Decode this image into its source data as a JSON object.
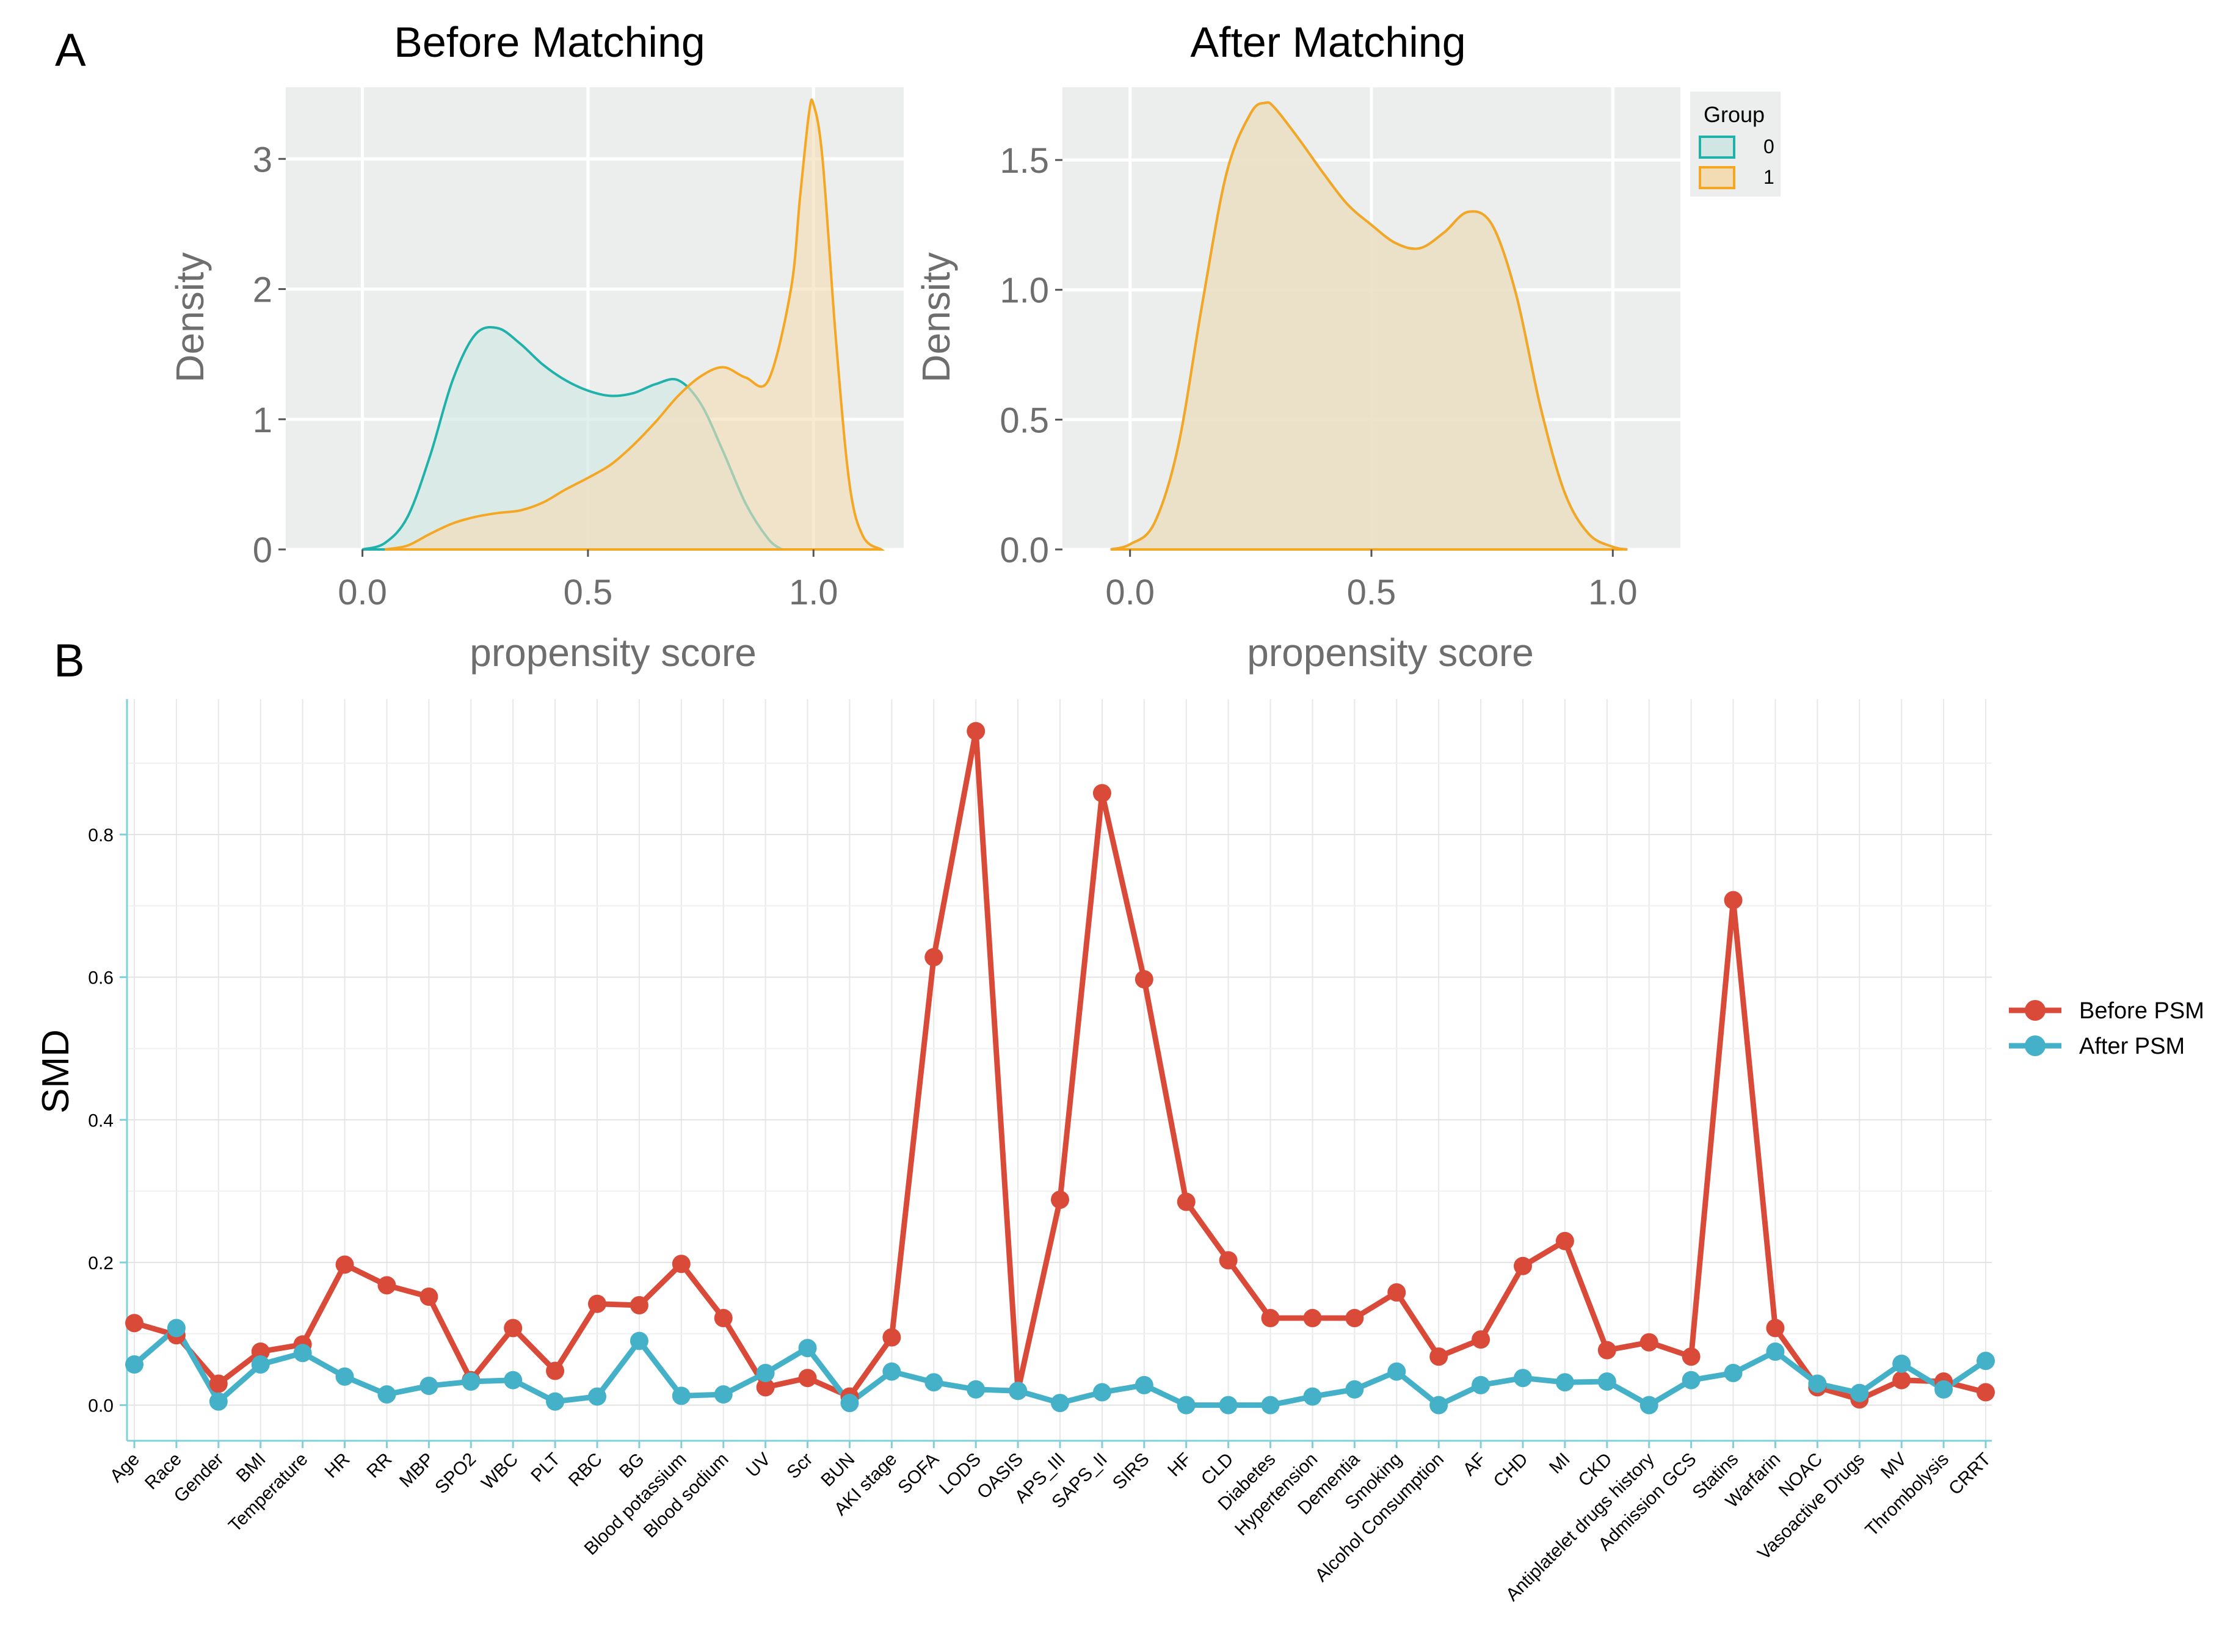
{
  "panel_labels": {
    "a": "A",
    "b": "B"
  },
  "colors": {
    "group0": "#20B2AA",
    "group0_fill": "#cfe6e2",
    "group1": "#F5A623",
    "group1_fill": "#f3dcb4",
    "overlap_fill": "#d9d3a8",
    "before": "#d94a38",
    "after": "#44b1c9",
    "panel_bg": "#eceeed",
    "grid": "#ffffff"
  },
  "legend_a": {
    "title": "Group",
    "items": [
      "0",
      "1"
    ]
  },
  "legend_b": {
    "items": [
      "Before PSM",
      "After PSM"
    ]
  },
  "chart_data": [
    {
      "type": "area",
      "title": "Before Matching",
      "xlabel": "propensity score",
      "ylabel": "Density",
      "xlim": [
        -0.17,
        1.2
      ],
      "ylim": [
        0,
        3.55
      ],
      "xticks": [
        "0.0",
        "0.5",
        "1.0"
      ],
      "yticks": [
        "0",
        "1",
        "2",
        "3"
      ],
      "series": [
        {
          "name": "0",
          "x": [
            0.0,
            0.05,
            0.1,
            0.15,
            0.2,
            0.25,
            0.3,
            0.35,
            0.4,
            0.45,
            0.5,
            0.55,
            0.6,
            0.65,
            0.7,
            0.75,
            0.8,
            0.85,
            0.9,
            0.93
          ],
          "y": [
            0.0,
            0.05,
            0.25,
            0.72,
            1.3,
            1.65,
            1.7,
            1.58,
            1.42,
            1.3,
            1.22,
            1.18,
            1.2,
            1.27,
            1.3,
            1.12,
            0.75,
            0.35,
            0.08,
            0.0
          ]
        },
        {
          "name": "1",
          "x": [
            0.05,
            0.1,
            0.15,
            0.2,
            0.25,
            0.3,
            0.35,
            0.4,
            0.45,
            0.5,
            0.55,
            0.6,
            0.65,
            0.7,
            0.75,
            0.8,
            0.85,
            0.9,
            0.95,
            0.97,
            0.99,
            1.0,
            1.02,
            1.05,
            1.08,
            1.11,
            1.15
          ],
          "y": [
            0.0,
            0.03,
            0.12,
            0.2,
            0.25,
            0.28,
            0.3,
            0.36,
            0.46,
            0.55,
            0.65,
            0.8,
            0.98,
            1.18,
            1.33,
            1.4,
            1.32,
            1.3,
            2.0,
            2.7,
            3.35,
            3.42,
            3.0,
            1.6,
            0.5,
            0.1,
            0.0
          ]
        }
      ]
    },
    {
      "type": "area",
      "title": "After Matching",
      "xlabel": "propensity score",
      "ylabel": "Density",
      "xlim": [
        -0.14,
        1.14
      ],
      "ylim": [
        0,
        1.78
      ],
      "xticks": [
        "0.0",
        "0.5",
        "1.0"
      ],
      "yticks": [
        "0.0",
        "0.5",
        "1.0",
        "1.5"
      ],
      "series": [
        {
          "name": "0",
          "x": [
            -0.04,
            0.0,
            0.05,
            0.1,
            0.15,
            0.2,
            0.25,
            0.28,
            0.3,
            0.35,
            0.4,
            0.45,
            0.5,
            0.55,
            0.6,
            0.65,
            0.7,
            0.75,
            0.8,
            0.85,
            0.9,
            0.95,
            1.0,
            1.03
          ],
          "y": [
            0.0,
            0.02,
            0.1,
            0.4,
            0.95,
            1.45,
            1.68,
            1.72,
            1.7,
            1.58,
            1.45,
            1.33,
            1.25,
            1.18,
            1.16,
            1.22,
            1.3,
            1.25,
            0.98,
            0.55,
            0.22,
            0.06,
            0.01,
            0.0
          ]
        },
        {
          "name": "1",
          "x": [
            -0.04,
            0.0,
            0.05,
            0.1,
            0.15,
            0.2,
            0.25,
            0.28,
            0.3,
            0.35,
            0.4,
            0.45,
            0.5,
            0.55,
            0.6,
            0.65,
            0.7,
            0.75,
            0.8,
            0.85,
            0.9,
            0.95,
            1.0,
            1.03
          ],
          "y": [
            0.0,
            0.02,
            0.1,
            0.4,
            0.95,
            1.45,
            1.68,
            1.72,
            1.7,
            1.58,
            1.45,
            1.33,
            1.25,
            1.18,
            1.16,
            1.22,
            1.3,
            1.25,
            0.98,
            0.55,
            0.22,
            0.06,
            0.01,
            0.0
          ]
        }
      ]
    },
    {
      "type": "line",
      "title": "",
      "xlabel": "",
      "ylabel": "SMD",
      "ylim": [
        -0.05,
        0.99
      ],
      "yticks": [
        "0.0",
        "0.2",
        "0.4",
        "0.6",
        "0.8"
      ],
      "categories": [
        "Age",
        "Race",
        "Gender",
        "BMI",
        "Temperature",
        "HR",
        "RR",
        "MBP",
        "SPO2",
        "WBC",
        "PLT",
        "RBC",
        "BG",
        "Blood potassium",
        "Blood sodium",
        "UV",
        "Scr",
        "BUN",
        "AKI stage",
        "SOFA",
        "LODS",
        "OASIS",
        "APS_III",
        "SAPS_II",
        "SIRS",
        "HF",
        "CLD",
        "Diabetes",
        "Hypertension",
        "Dementia",
        "Smoking",
        "Alcohol Consumption",
        "AF",
        "CHD",
        "MI",
        "CKD",
        "Antiplatelet drugs history",
        "Admission GCS",
        "Statins",
        "Warfarin",
        "NOAC",
        "Vasoactive Drugs",
        "MV",
        "Thrombolysis",
        "CRRT"
      ],
      "series": [
        {
          "name": "Before PSM",
          "values": [
            0.115,
            0.098,
            0.03,
            0.075,
            0.085,
            0.197,
            0.168,
            0.152,
            0.035,
            0.108,
            0.048,
            0.142,
            0.14,
            0.198,
            0.122,
            0.025,
            0.038,
            0.012,
            0.095,
            0.628,
            0.945,
            0.02,
            0.288,
            0.858,
            0.597,
            0.285,
            0.203,
            0.122,
            0.122,
            0.122,
            0.158,
            0.068,
            0.092,
            0.195,
            0.23,
            0.077,
            0.088,
            0.068,
            0.708,
            0.108,
            0.025,
            0.008,
            0.035,
            0.033,
            0.018
          ]
        },
        {
          "name": "After PSM",
          "values": [
            0.057,
            0.108,
            0.005,
            0.057,
            0.073,
            0.04,
            0.015,
            0.027,
            0.033,
            0.035,
            0.005,
            0.012,
            0.09,
            0.013,
            0.015,
            0.045,
            0.08,
            0.003,
            0.047,
            0.032,
            0.022,
            0.02,
            0.003,
            0.018,
            0.028,
            0.0,
            0.0,
            0.0,
            0.012,
            0.022,
            0.047,
            0.0,
            0.028,
            0.038,
            0.032,
            0.033,
            0.0,
            0.035,
            0.045,
            0.075,
            0.03,
            0.017,
            0.058,
            0.022,
            0.062
          ]
        }
      ]
    }
  ]
}
